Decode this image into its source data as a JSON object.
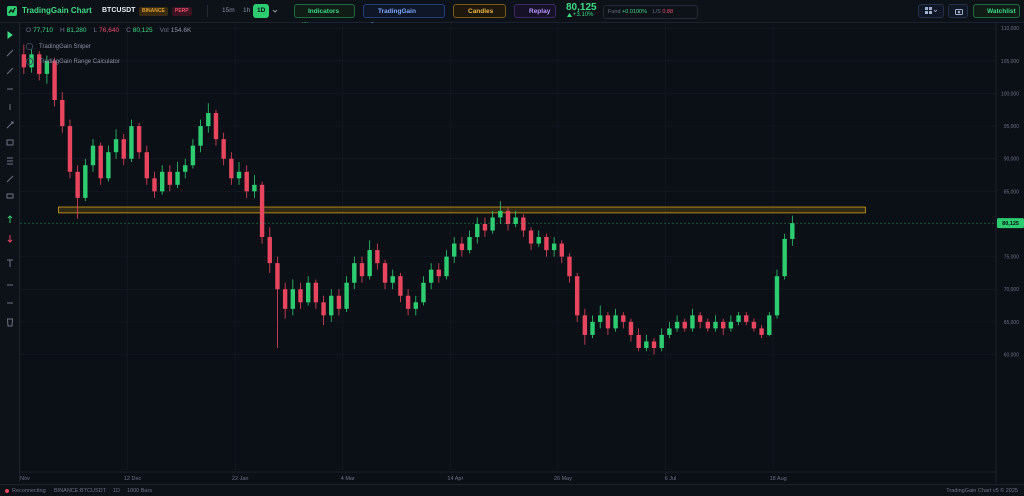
{
  "header": {
    "logo": "TradingGain Chart",
    "symbol": "BTCUSDT",
    "exchange": "BINANCE",
    "contract": "PERP",
    "timeframes": [
      "15m",
      "1h",
      "1D"
    ],
    "active_timeframe": "1D",
    "indicators_button": "Indicators (2)",
    "scanner_button": "TradingGain Scanner",
    "candles_button": "Candles",
    "replay_button": "Replay",
    "change": "+3.10%",
    "funding_label": "Fund",
    "funding": "+0.0100%",
    "ls_label": "L/S",
    "ls": "0.88",
    "watchlist_button": "Watchlist"
  },
  "ohlc_legend": [
    {
      "key": "O",
      "value": "77,710",
      "color": "#3ddc84"
    },
    {
      "key": "H",
      "value": "81,280",
      "color": "#3ddc84"
    },
    {
      "key": "L",
      "value": "76,640",
      "color": "#f0506e"
    },
    {
      "key": "C",
      "value": "80,125",
      "color": "#3ddc84"
    },
    {
      "key": "Vol",
      "value": "154.6K",
      "color": "#8a93a6"
    }
  ],
  "indicators": [
    "TradingGain Sniper",
    "TradingGain Range Calculator"
  ],
  "chart_data": {
    "type": "candlestick",
    "up_color": "#2ecc71",
    "down_color": "#e8455f",
    "grid": true,
    "xlim": [
      0,
      127
    ],
    "xticks": [
      {
        "value": 0,
        "label": "Nov"
      },
      {
        "value": 14,
        "label": "12 Dec"
      },
      {
        "value": 28,
        "label": "22 Jan"
      },
      {
        "value": 42,
        "label": "4 Mar"
      },
      {
        "value": 56,
        "label": "14 Apr"
      },
      {
        "value": 70,
        "label": "26 May"
      },
      {
        "value": 84,
        "label": "6 Jul"
      },
      {
        "value": 98,
        "label": "18 Aug"
      }
    ],
    "ylim": [
      42300,
      110800
    ],
    "yticks": [
      {
        "value": 60000,
        "label": "60,000"
      },
      {
        "value": 65000,
        "label": "65,000"
      },
      {
        "value": 70000,
        "label": "70,000"
      },
      {
        "value": 75000,
        "label": "75,000"
      },
      {
        "value": 85000,
        "label": "85,000"
      },
      {
        "value": 90000,
        "label": "90,000"
      },
      {
        "value": 95000,
        "label": "95,000"
      },
      {
        "value": 100000,
        "label": "100,000"
      },
      {
        "value": 105000,
        "label": "105,000"
      },
      {
        "value": 110000,
        "label": "110,000"
      }
    ],
    "last_price": {
      "value": 80125,
      "label": "80,125"
    },
    "zone": {
      "low": 81700,
      "high": 82600,
      "start": 5,
      "end": 110,
      "color": "#d4a017"
    },
    "candles": [
      [
        106000,
        107500,
        103000,
        104000
      ],
      [
        104000,
        106800,
        103200,
        106000
      ],
      [
        106000,
        106500,
        102000,
        103000
      ],
      [
        103000,
        105800,
        101500,
        105000
      ],
      [
        105000,
        105500,
        98000,
        99000
      ],
      [
        99000,
        100200,
        94000,
        95000
      ],
      [
        95000,
        96000,
        87000,
        88000
      ],
      [
        88000,
        89000,
        80800,
        84000
      ],
      [
        84000,
        90000,
        83500,
        89000
      ],
      [
        89000,
        93000,
        88000,
        92000
      ],
      [
        92000,
        92500,
        86000,
        87000
      ],
      [
        87000,
        92000,
        86500,
        91000
      ],
      [
        91000,
        94500,
        90000,
        93000
      ],
      [
        93000,
        93800,
        89000,
        90000
      ],
      [
        90000,
        96000,
        89500,
        95000
      ],
      [
        95000,
        95500,
        90000,
        91000
      ],
      [
        91000,
        92000,
        86000,
        87000
      ],
      [
        87000,
        88000,
        84000,
        85000
      ],
      [
        85000,
        89000,
        84500,
        88000
      ],
      [
        88000,
        89000,
        85000,
        86000
      ],
      [
        86000,
        89500,
        85500,
        88000
      ],
      [
        88000,
        90000,
        87000,
        89000
      ],
      [
        89000,
        93000,
        88500,
        92000
      ],
      [
        92000,
        96000,
        91000,
        95000
      ],
      [
        95000,
        98500,
        94000,
        97000
      ],
      [
        97000,
        97500,
        92000,
        93000
      ],
      [
        93000,
        94000,
        89000,
        90000
      ],
      [
        90000,
        91000,
        86000,
        87000
      ],
      [
        87000,
        89500,
        86000,
        88000
      ],
      [
        88000,
        89000,
        84000,
        85000
      ],
      [
        85000,
        87500,
        84000,
        86000
      ],
      [
        86000,
        86500,
        77000,
        78000
      ],
      [
        78000,
        79500,
        72500,
        74000
      ],
      [
        74000,
        75000,
        61000,
        70000
      ],
      [
        70000,
        71000,
        65500,
        67000
      ],
      [
        67000,
        71500,
        66000,
        70000
      ],
      [
        70000,
        71000,
        67000,
        68000
      ],
      [
        68000,
        72000,
        67500,
        71000
      ],
      [
        71000,
        71500,
        67000,
        68000
      ],
      [
        68000,
        69000,
        64500,
        66000
      ],
      [
        66000,
        70000,
        65000,
        69000
      ],
      [
        69000,
        70000,
        66000,
        67000
      ],
      [
        67000,
        72000,
        66500,
        71000
      ],
      [
        71000,
        75000,
        70000,
        74000
      ],
      [
        74000,
        75000,
        71000,
        72000
      ],
      [
        72000,
        77500,
        71500,
        76000
      ],
      [
        76000,
        77000,
        73000,
        74000
      ],
      [
        74000,
        74500,
        70000,
        71000
      ],
      [
        71000,
        73000,
        70000,
        72000
      ],
      [
        72000,
        72500,
        68000,
        69000
      ],
      [
        69000,
        70000,
        66000,
        67000
      ],
      [
        67000,
        69000,
        66000,
        68000
      ],
      [
        68000,
        72000,
        67500,
        71000
      ],
      [
        71000,
        74000,
        70000,
        73000
      ],
      [
        73000,
        74000,
        71000,
        72000
      ],
      [
        72000,
        76000,
        71500,
        75000
      ],
      [
        75000,
        78000,
        74000,
        77000
      ],
      [
        77000,
        78000,
        75000,
        76000
      ],
      [
        76000,
        79000,
        75500,
        78000
      ],
      [
        78000,
        81000,
        77000,
        80000
      ],
      [
        80000,
        81000,
        78000,
        79000
      ],
      [
        79000,
        82000,
        78500,
        81000
      ],
      [
        81000,
        83500,
        80000,
        82000
      ],
      [
        82000,
        82500,
        79000,
        80000
      ],
      [
        80000,
        82000,
        79500,
        81000
      ],
      [
        81000,
        81500,
        78000,
        79000
      ],
      [
        79000,
        79500,
        76000,
        77000
      ],
      [
        77000,
        79000,
        76500,
        78000
      ],
      [
        78000,
        78500,
        75000,
        76000
      ],
      [
        76000,
        78000,
        75000,
        77000
      ],
      [
        77000,
        77500,
        74000,
        75000
      ],
      [
        75000,
        75500,
        71000,
        72000
      ],
      [
        72000,
        72500,
        65000,
        66000
      ],
      [
        66000,
        67000,
        61500,
        63000
      ],
      [
        63000,
        66000,
        62500,
        65000
      ],
      [
        65000,
        67500,
        64000,
        66000
      ],
      [
        66000,
        66500,
        63000,
        64000
      ],
      [
        64000,
        67000,
        63500,
        66000
      ],
      [
        66000,
        66500,
        64000,
        65000
      ],
      [
        65000,
        65500,
        62000,
        63000
      ],
      [
        63000,
        64000,
        60500,
        61000
      ],
      [
        61000,
        63000,
        60500,
        62000
      ],
      [
        62000,
        62500,
        60000,
        61000
      ],
      [
        61000,
        64000,
        60500,
        63000
      ],
      [
        63000,
        65000,
        62500,
        64000
      ],
      [
        64000,
        66000,
        63500,
        65000
      ],
      [
        65000,
        65500,
        63500,
        64000
      ],
      [
        64000,
        67000,
        63500,
        66000
      ],
      [
        66000,
        66500,
        64000,
        65000
      ],
      [
        65000,
        65500,
        63500,
        64000
      ],
      [
        64000,
        66000,
        63500,
        65000
      ],
      [
        65000,
        65500,
        63000,
        64000
      ],
      [
        64000,
        66000,
        63500,
        65000
      ],
      [
        65000,
        66500,
        64500,
        66000
      ],
      [
        66000,
        66500,
        64500,
        65000
      ],
      [
        65000,
        65500,
        63500,
        64000
      ],
      [
        64000,
        64500,
        62500,
        63000
      ],
      [
        63000,
        66500,
        62800,
        66000
      ],
      [
        66000,
        73000,
        65500,
        72000
      ],
      [
        72000,
        78500,
        71500,
        77710
      ],
      [
        77710,
        81280,
        76640,
        80125
      ]
    ]
  },
  "status_bar": {
    "connection": "Reconnecting",
    "symbol": "BINANCE:BTCUSDT",
    "interval": "1D",
    "bars": "1000 Bars",
    "version": "TradingGain Chart v5 © 2025"
  }
}
